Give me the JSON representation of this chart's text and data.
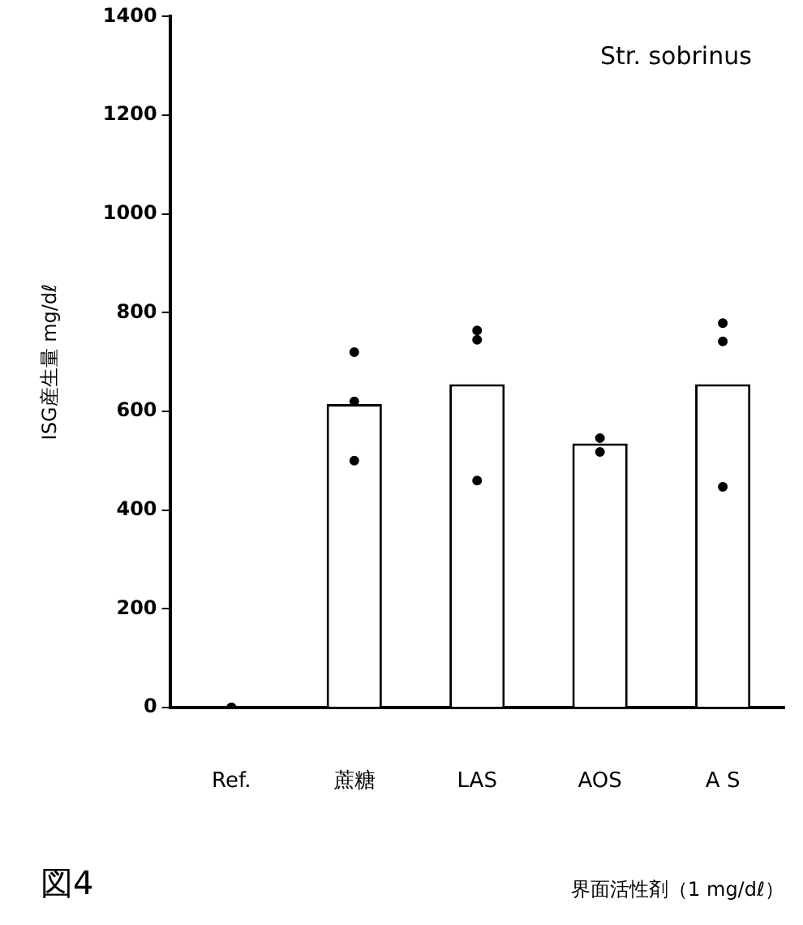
{
  "chart_data": {
    "type": "bar",
    "categories": [
      "Ref.",
      "蔗糖",
      "LAS",
      "AOS",
      "A S"
    ],
    "series": [
      {
        "color": "#ffffff",
        "values": [
          0,
          615,
          655,
          535,
          655
        ]
      },
      {
        "type": "scatter",
        "color": "#000000",
        "values": [
          0,
          500,
          460,
          518,
          742
        ]
      },
      {
        "type": "scatter",
        "color": "#000000",
        "values": [
          0,
          720,
          764,
          null,
          779
        ]
      },
      {
        "type": "scatter",
        "color": "#000000",
        "values": [
          0,
          620,
          745,
          546,
          447
        ]
      }
    ],
    "ylim": [
      0,
      1400
    ],
    "yticks": [
      0,
      200,
      400,
      600,
      800,
      1000,
      1200,
      1400
    ],
    "ylabel": "ISG産生量 mg/dℓ",
    "xlabel": "界面活性剤（1 mg/dℓ）",
    "annotations": [
      "Str. sobrinus",
      "図4"
    ],
    "grid": false,
    "legend": false,
    "marker": "circle"
  }
}
